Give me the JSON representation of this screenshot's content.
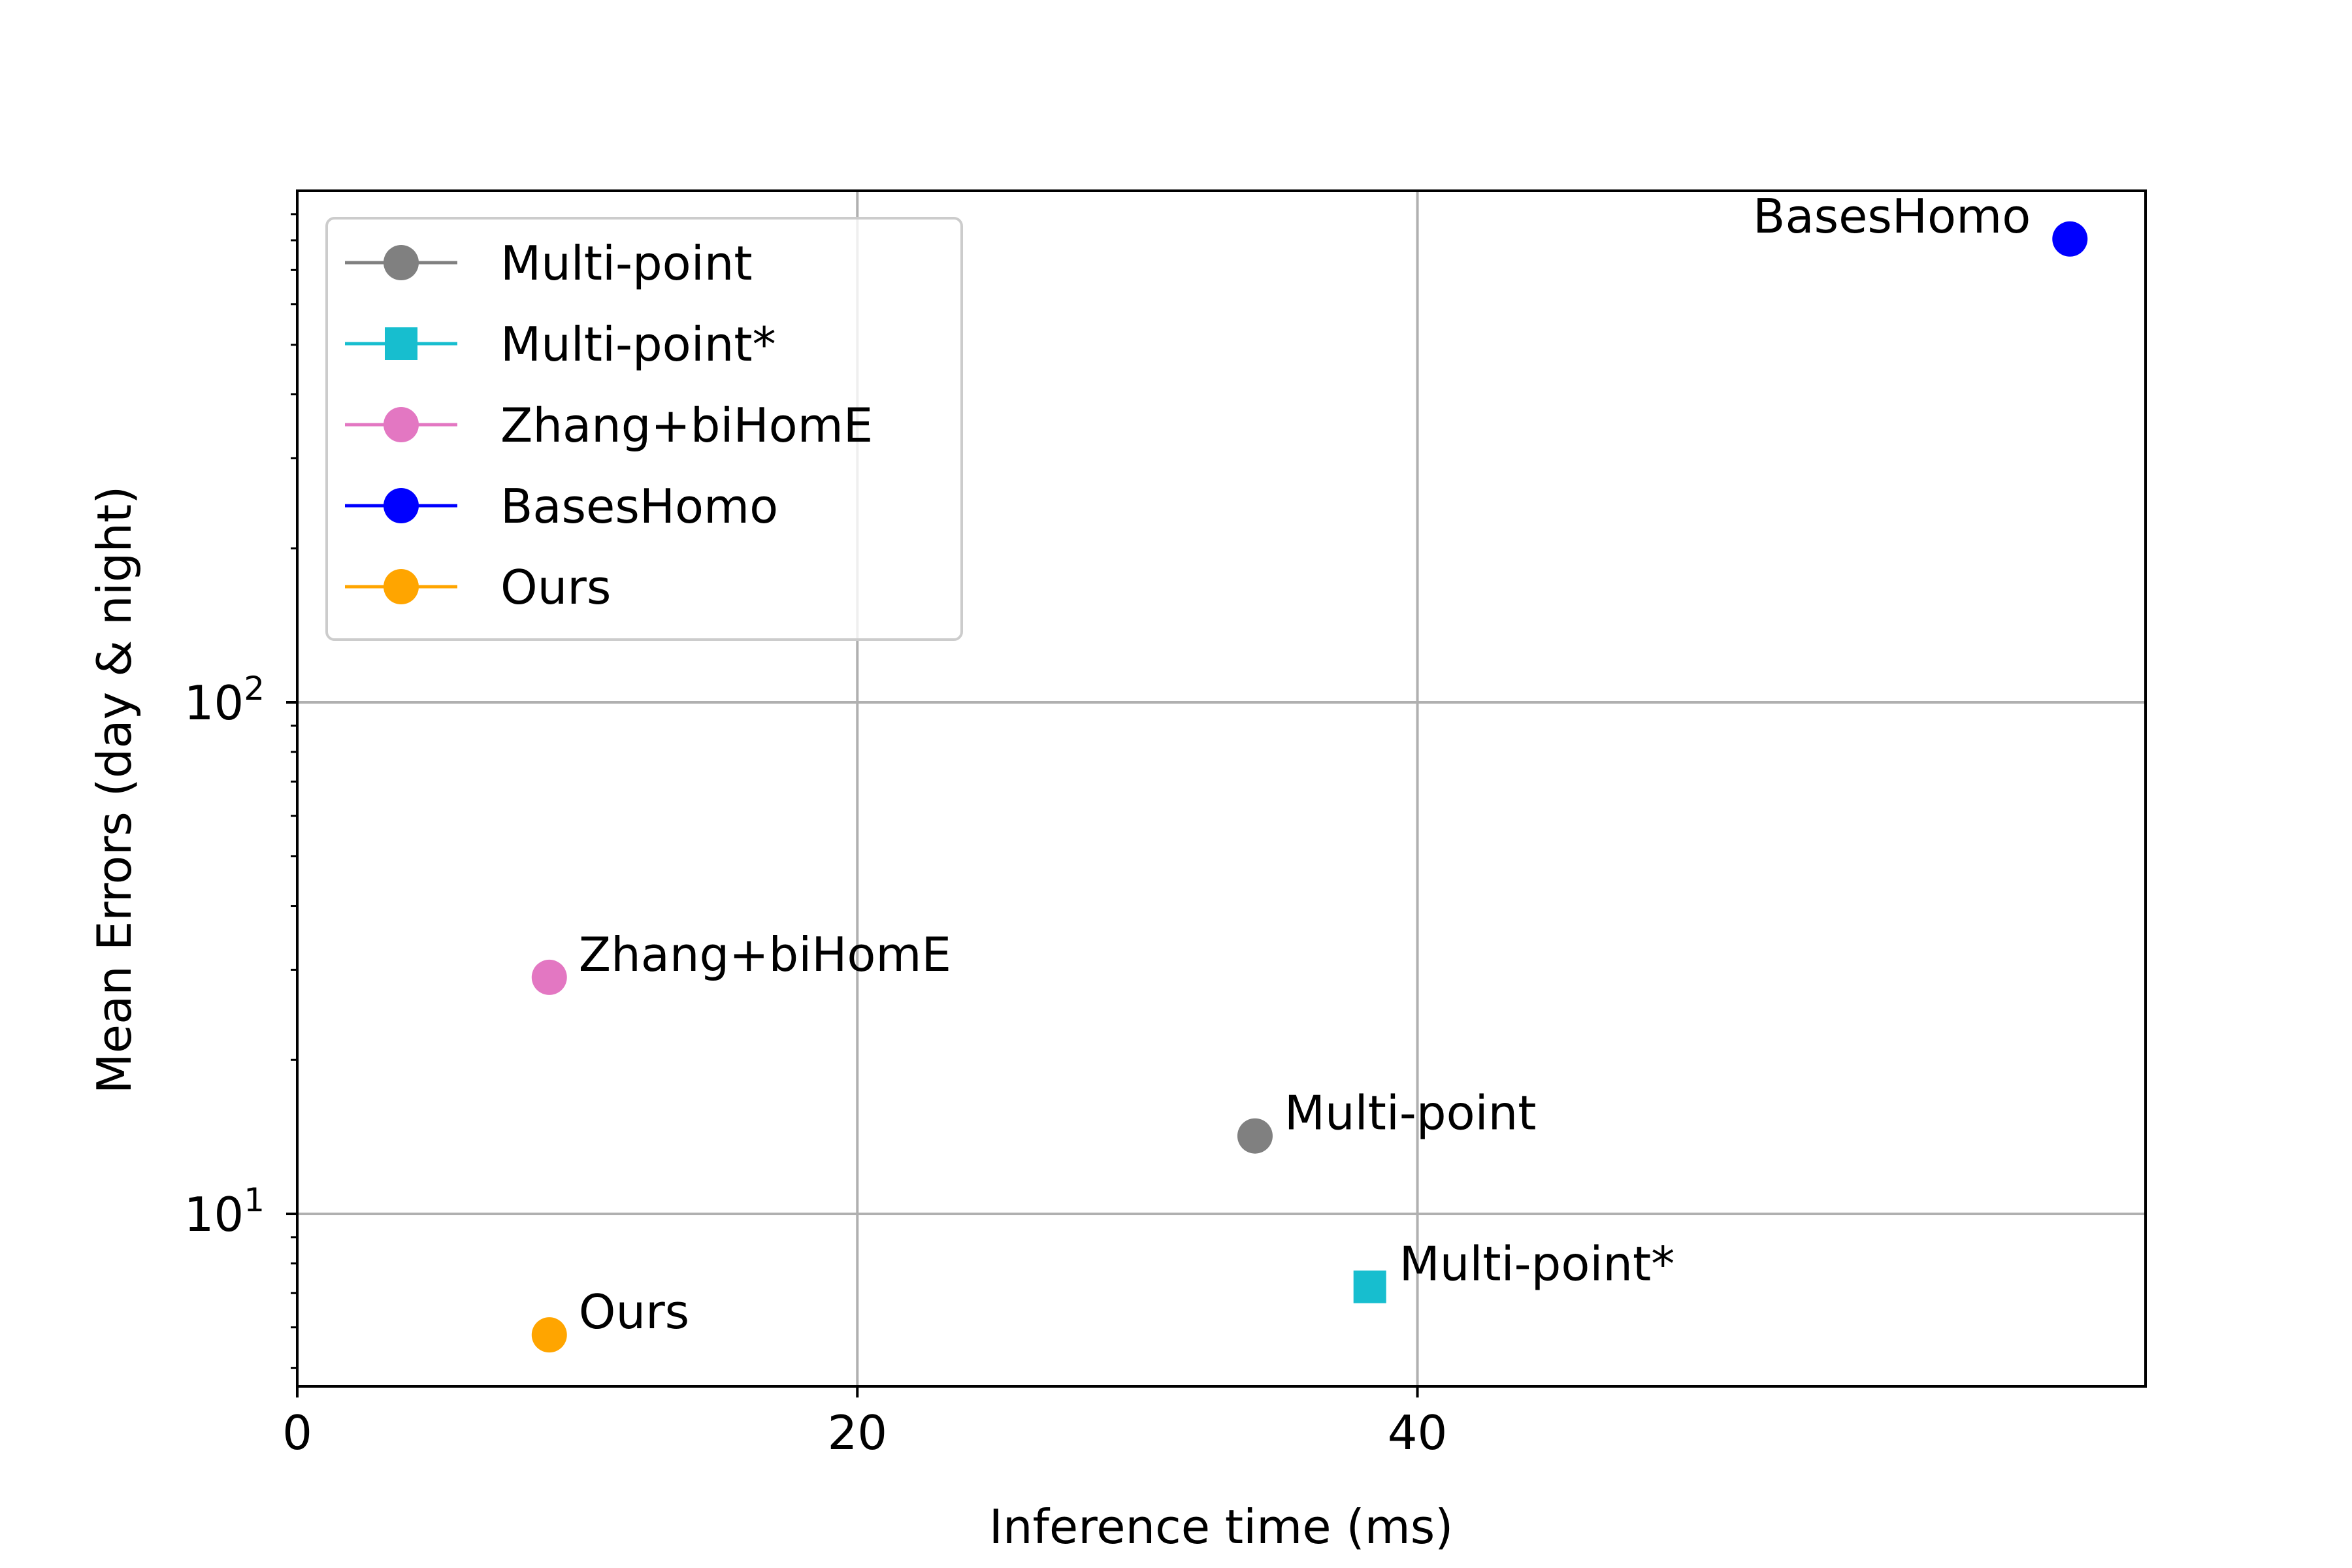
{
  "chart_data": {
    "type": "scatter",
    "xlabel": "Inference time (ms)",
    "ylabel": "Mean Errors (day & night)",
    "x_scale": "linear",
    "y_scale": "log",
    "xlim": [
      0,
      66
    ],
    "ylim": [
      4.6,
      1000
    ],
    "x_ticks": [
      {
        "value": 0,
        "label": "0"
      },
      {
        "value": 20,
        "label": "20"
      },
      {
        "value": 40,
        "label": "40"
      }
    ],
    "y_ticks": [
      {
        "value": 10,
        "base": "10",
        "exp": "1"
      },
      {
        "value": 100,
        "base": "10",
        "exp": "2"
      }
    ],
    "grid": true,
    "legend_position": "top-left",
    "series": [
      {
        "name": "Multi-point",
        "color": "#808080",
        "marker": "circle",
        "x": 34.2,
        "y": 14.2,
        "annotation": "Multi-point"
      },
      {
        "name": "Multi-point*",
        "color": "#17becf",
        "marker": "square",
        "x": 38.3,
        "y": 7.2,
        "annotation": "Multi-point*"
      },
      {
        "name": "Zhang+biHomE",
        "color": "#e377c2",
        "marker": "circle",
        "x": 9.0,
        "y": 29.0,
        "annotation": "Zhang+biHomE"
      },
      {
        "name": "BasesHomo",
        "color": "#0000ff",
        "marker": "circle",
        "x": 63.3,
        "y": 805,
        "annotation": "BasesHomo"
      },
      {
        "name": "Ours",
        "color": "#ffa500",
        "marker": "circle",
        "x": 9.0,
        "y": 5.8,
        "annotation": "Ours"
      }
    ]
  }
}
